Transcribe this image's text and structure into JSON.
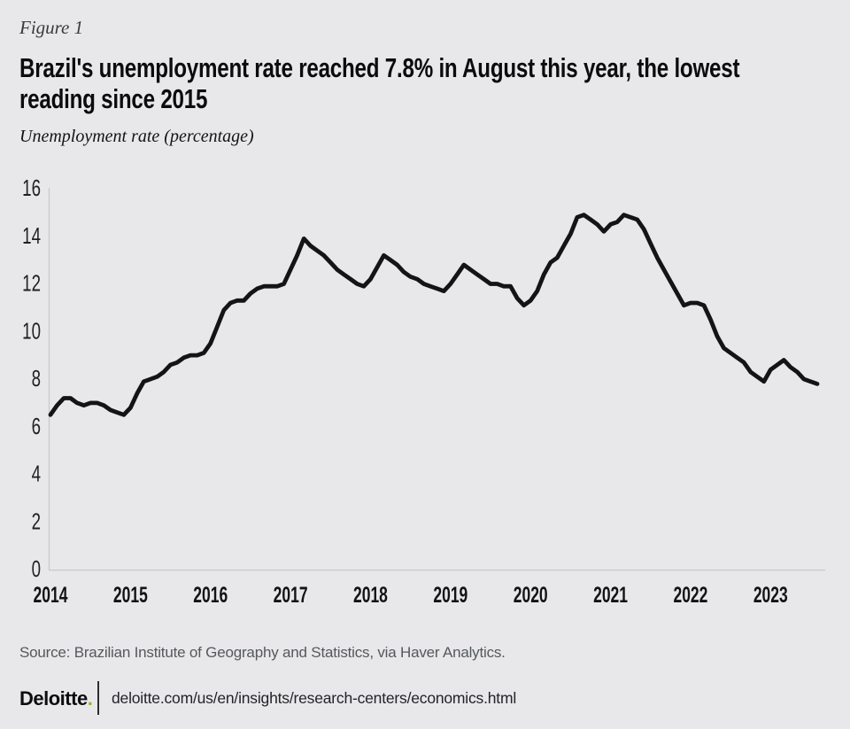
{
  "figure_label": "Figure 1",
  "title": {
    "full": "Brazil's unemployment rate reached 7.8% in August this year, the lowest reading since 2015",
    "lines": [
      "Brazil's unemployment rate reached 7.8% in August this year, the lowest",
      "reading since 2015"
    ]
  },
  "subtitle": "Unemployment rate (percentage)",
  "source": "Source: Brazilian Institute of Geography and Statistics, via Haver Analytics.",
  "footer": {
    "brand": "Deloitte",
    "brand_dot": ".",
    "url": "deloitte.com/us/en/insights/research-centers/economics.html"
  },
  "colors": {
    "background": "#e8e8ea",
    "line": "#141414",
    "axis": "#c9c9cb",
    "y_tick_text": "#202022",
    "x_tick_text": "#131315",
    "accent_green": "#86bc25",
    "source_text": "#55585b"
  },
  "chart_data": {
    "type": "line",
    "title": "Brazil's unemployment rate reached 7.8% in August this year, the lowest reading since 2015",
    "ylabel": "Unemployment rate (percentage)",
    "xlabel": "",
    "frequency": "monthly",
    "x_start": "2014-01",
    "x_end": "2023-08",
    "x_tick_labels": [
      "2014",
      "2015",
      "2016",
      "2017",
      "2018",
      "2019",
      "2020",
      "2021",
      "2022",
      "2023"
    ],
    "y_ticks": [
      0,
      2,
      4,
      6,
      8,
      10,
      12,
      14,
      16
    ],
    "ylim": [
      0,
      16
    ],
    "grid": false,
    "legend": "none",
    "latest_value": 7.8,
    "latest_label": "August 2023",
    "series": [
      {
        "name": "Unemployment rate (%)",
        "values": [
          6.5,
          6.9,
          7.2,
          7.2,
          7.0,
          6.9,
          7.0,
          7.0,
          6.9,
          6.7,
          6.6,
          6.5,
          6.8,
          7.4,
          7.9,
          8.0,
          8.1,
          8.3,
          8.6,
          8.7,
          8.9,
          9.0,
          9.0,
          9.1,
          9.5,
          10.2,
          10.9,
          11.2,
          11.3,
          11.3,
          11.6,
          11.8,
          11.9,
          11.9,
          11.9,
          12.0,
          12.6,
          13.2,
          13.9,
          13.6,
          13.4,
          13.2,
          12.9,
          12.6,
          12.4,
          12.2,
          12.0,
          11.9,
          12.2,
          12.7,
          13.2,
          13.0,
          12.8,
          12.5,
          12.3,
          12.2,
          12.0,
          11.9,
          11.8,
          11.7,
          12.0,
          12.4,
          12.8,
          12.6,
          12.4,
          12.2,
          12.0,
          12.0,
          11.9,
          11.9,
          11.4,
          11.1,
          11.3,
          11.7,
          12.4,
          12.9,
          13.1,
          13.6,
          14.1,
          14.8,
          14.9,
          14.7,
          14.5,
          14.2,
          14.5,
          14.6,
          14.9,
          14.8,
          14.7,
          14.3,
          13.7,
          13.1,
          12.6,
          12.1,
          11.6,
          11.1,
          11.2,
          11.2,
          11.1,
          10.5,
          9.8,
          9.3,
          9.1,
          8.9,
          8.7,
          8.3,
          8.1,
          7.9,
          8.4,
          8.6,
          8.8,
          8.5,
          8.3,
          8.0,
          7.9,
          7.8
        ]
      }
    ]
  }
}
